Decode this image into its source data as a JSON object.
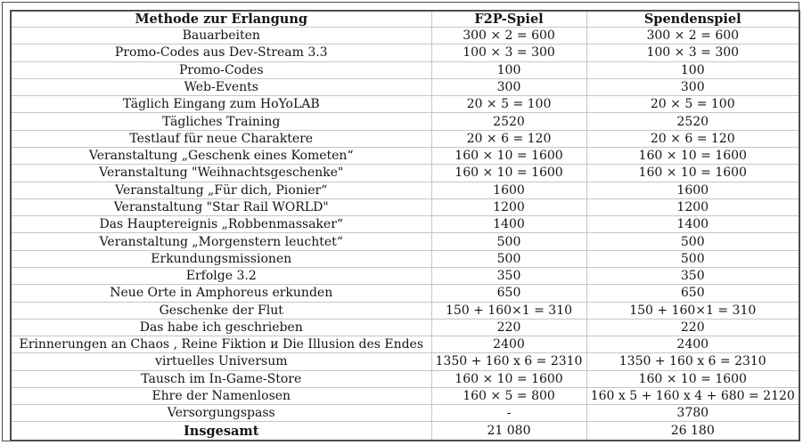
{
  "table": {
    "columns": [
      "Methode zur Erlangung",
      "F2P-Spiel",
      "Spendenspiel"
    ],
    "rows": [
      {
        "method": "Bauarbeiten",
        "f2p": "300 × 2 = 600",
        "donation": "300 × 2 = 600"
      },
      {
        "method": "Promo-Codes aus Dev-Stream 3.3",
        "f2p": "100 × 3 = 300",
        "donation": "100 × 3 = 300"
      },
      {
        "method": "Promo-Codes",
        "f2p": "100",
        "donation": "100"
      },
      {
        "method": "Web-Events",
        "f2p": "300",
        "donation": "300"
      },
      {
        "method": "Täglich Eingang zum HoYoLAB",
        "f2p": "20 × 5 = 100",
        "donation": "20 × 5 = 100"
      },
      {
        "method": "Tägliches Training",
        "f2p": "2520",
        "donation": "2520"
      },
      {
        "method": "Testlauf für neue Charaktere",
        "f2p": "20 × 6 = 120",
        "donation": "20 × 6 = 120"
      },
      {
        "method": "Veranstaltung „Geschenk eines Kometen“",
        "f2p": "160 × 10 = 1600",
        "donation": "160 × 10 = 1600"
      },
      {
        "method": "Veranstaltung \"Weihnachtsgeschenke\"",
        "f2p": "160 × 10 = 1600",
        "donation": "160 × 10 = 1600"
      },
      {
        "method": "Veranstaltung „Für dich, Pionier“",
        "f2p": "1600",
        "donation": "1600"
      },
      {
        "method": "Veranstaltung \"Star Rail WORLD\"",
        "f2p": "1200",
        "donation": "1200"
      },
      {
        "method": "Das Hauptereignis „Robbenmassaker“",
        "f2p": "1400",
        "donation": "1400"
      },
      {
        "method": "Veranstaltung „Morgenstern leuchtet“",
        "f2p": "500",
        "donation": "500"
      },
      {
        "method": "Erkundungsmissionen",
        "f2p": "500",
        "donation": "500"
      },
      {
        "method": "Erfolge 3.2",
        "f2p": "350",
        "donation": "350"
      },
      {
        "method": "Neue Orte in Amphoreus erkunden",
        "f2p": "650",
        "donation": "650"
      },
      {
        "method": "Geschenke der Flut",
        "f2p": "150 + 160×1 = 310",
        "donation": "150 + 160×1 = 310"
      },
      {
        "method": "Das habe ich geschrieben",
        "f2p": "220",
        "donation": "220"
      },
      {
        "method": "Erinnerungen an Chaos , Reine Fiktion и Die Illusion des Endes",
        "f2p": "2400",
        "donation": "2400"
      },
      {
        "method": "virtuelles Universum",
        "f2p": "1350 + 160 x 6 = 2310",
        "donation": "1350 + 160 x 6 = 2310"
      },
      {
        "method": "Tausch im In-Game-Store",
        "f2p": "160 × 10 = 1600",
        "donation": "160 × 10 = 1600"
      },
      {
        "method": "Ehre der Namenlosen",
        "f2p": "160 × 5 = 800",
        "donation": "160 x 5 + 160 x 4 + 680 = 2120"
      },
      {
        "method": "Versorgungspass",
        "f2p": "-",
        "donation": "3780"
      },
      {
        "method": "Insgesamt",
        "f2p": "21 080",
        "donation": "26 180",
        "bold": true
      }
    ]
  },
  "colors": {
    "background": "#ffffff",
    "text": "#141414",
    "outer_border": "#4d4d4d",
    "inner_grid": "#c6c6c6"
  }
}
